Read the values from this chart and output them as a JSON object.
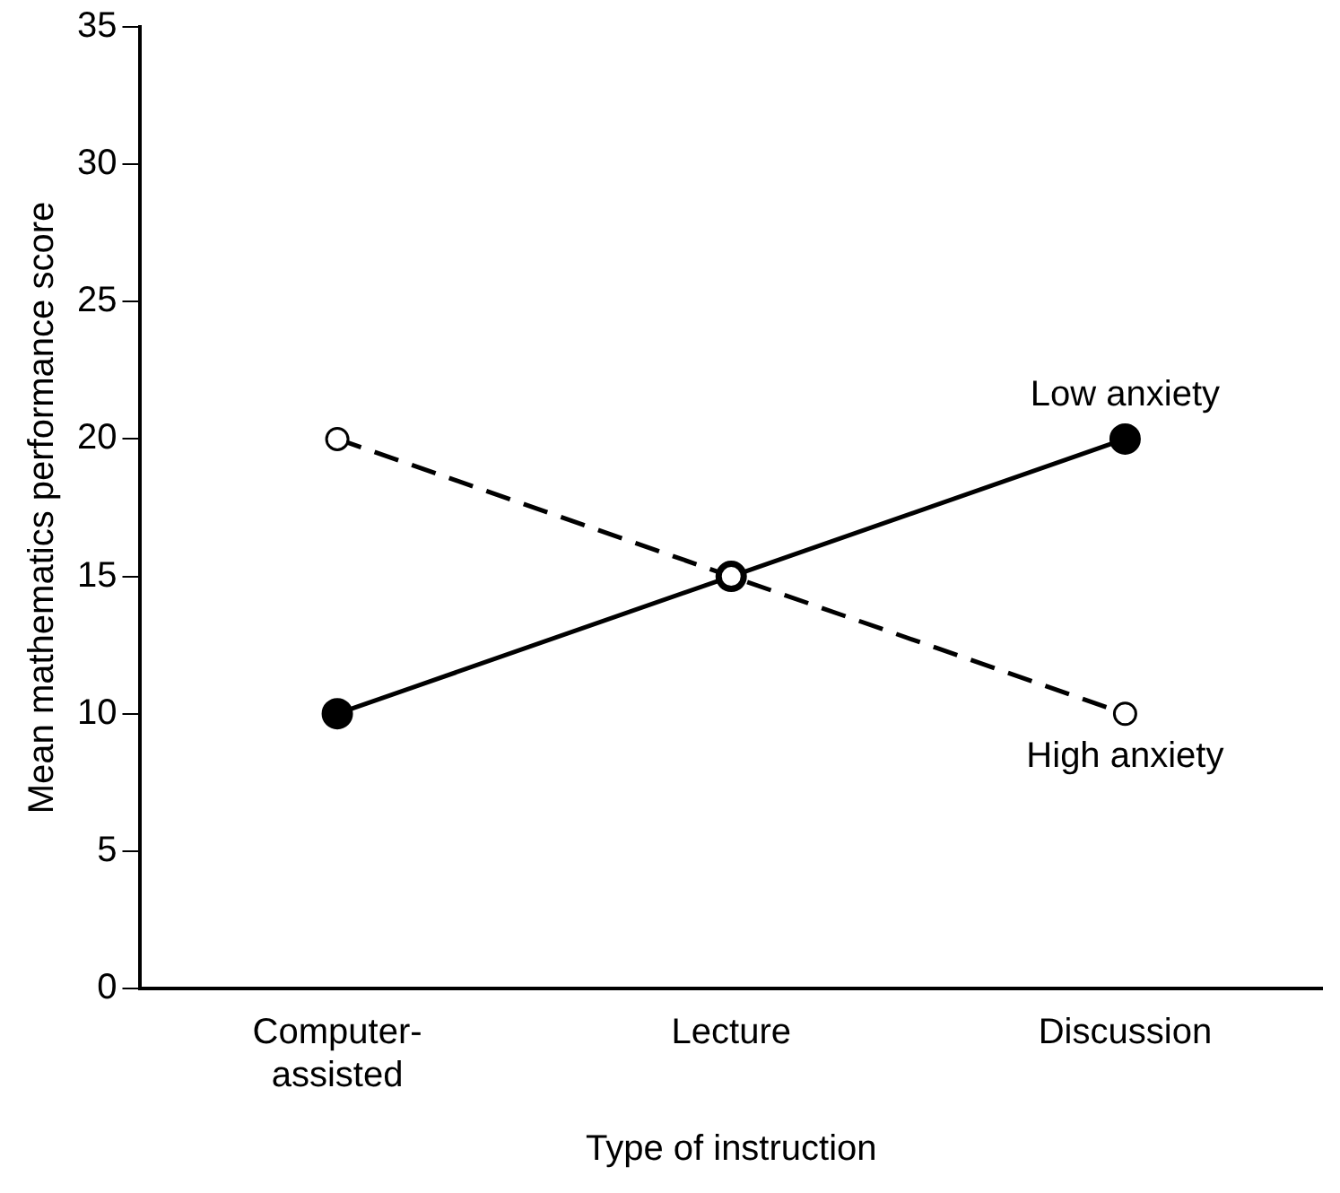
{
  "chart_data": {
    "type": "line",
    "xlabel": "Type of instruction",
    "ylabel": "Mean mathematics performance score",
    "categories": [
      "Computer-assisted",
      "Lecture",
      "Discussion"
    ],
    "series": [
      {
        "name": "Low anxiety",
        "color": "#000000",
        "values": [
          10,
          15,
          20
        ],
        "line_style": "solid"
      },
      {
        "name": "High anxiety",
        "color": "#000000",
        "values": [
          20,
          15,
          10
        ],
        "line_style": "dashed"
      }
    ],
    "ylim": [
      0,
      35
    ],
    "yticks": [
      0,
      5,
      10,
      15,
      20,
      25,
      30,
      35
    ],
    "grid": false,
    "legend": false,
    "marker": "circle"
  }
}
